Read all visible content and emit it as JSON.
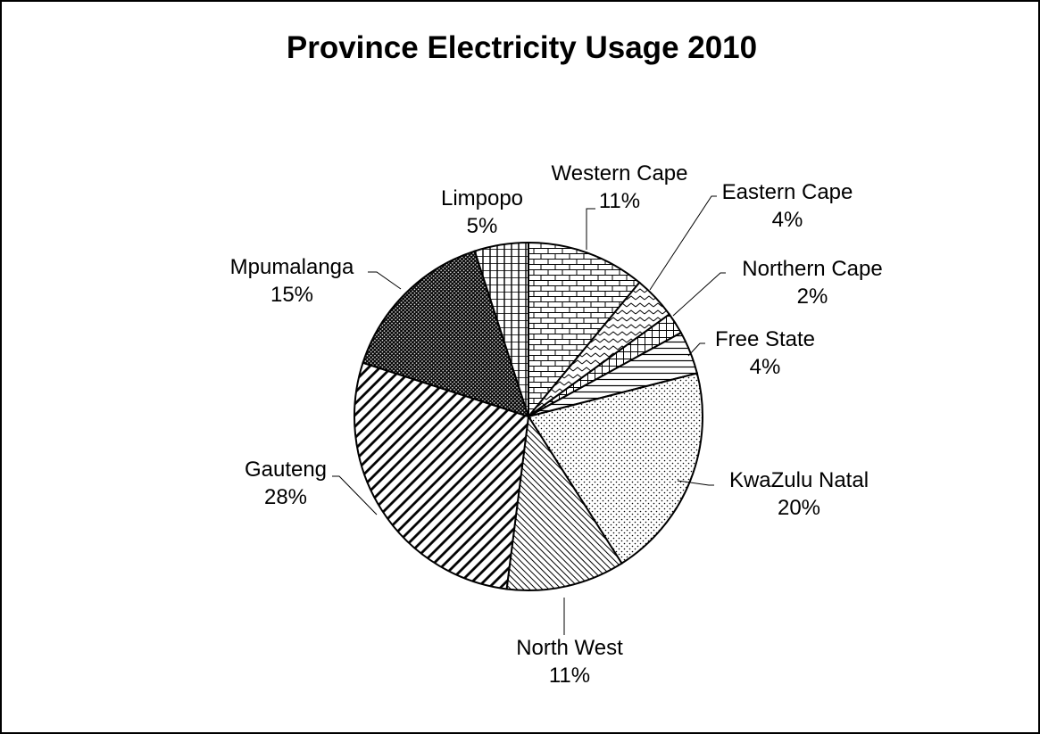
{
  "chart_data": {
    "type": "pie",
    "title": "Province Electricity Usage 2010",
    "slices": [
      {
        "name": "Western Cape",
        "value": 11,
        "label": "11%",
        "pattern": "brick"
      },
      {
        "name": "Eastern Cape",
        "value": 4,
        "label": "4%",
        "pattern": "zigzag"
      },
      {
        "name": "Northern Cape",
        "value": 2,
        "label": "2%",
        "pattern": "grid"
      },
      {
        "name": "Free State",
        "value": 4,
        "label": "4%",
        "pattern": "horizontal-lines"
      },
      {
        "name": "KwaZulu Natal",
        "value": 20,
        "label": "20%",
        "pattern": "dots"
      },
      {
        "name": "North West",
        "value": 11,
        "label": "11%",
        "pattern": "fine-diagonal"
      },
      {
        "name": "Gauteng",
        "value": 28,
        "label": "28%",
        "pattern": "wide-diagonal"
      },
      {
        "name": "Mpumalanga",
        "value": 15,
        "label": "15%",
        "pattern": "dense-checker"
      },
      {
        "name": "Limpopo",
        "value": 5,
        "label": "5%",
        "pattern": "vertical-lines"
      }
    ],
    "colors": {
      "stroke": "#000000",
      "background": "#ffffff"
    }
  }
}
